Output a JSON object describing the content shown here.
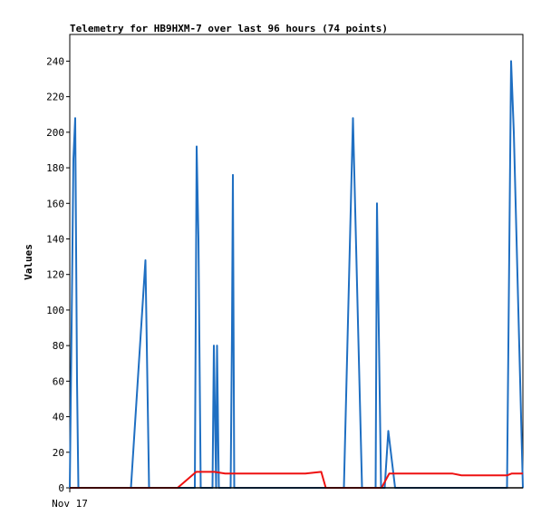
{
  "chart_data": {
    "type": "line",
    "title": "Telemetry for HB9HXM-7 over last 96 hours (74 points)",
    "xlabel": "",
    "ylabel": "Values",
    "x_tick_labels": [
      {
        "label": "Nov 17",
        "at": 0
      }
    ],
    "xlim": [
      0,
      100
    ],
    "ylim": [
      0,
      255
    ],
    "y_ticks": [
      0,
      20,
      40,
      60,
      80,
      100,
      120,
      140,
      160,
      180,
      200,
      220,
      240
    ],
    "grid": false,
    "legend": "none",
    "series": [
      {
        "color": "#1f6fc2",
        "points": [
          [
            0.0,
            0
          ],
          [
            0.4,
            90
          ],
          [
            0.8,
            185
          ],
          [
            1.2,
            208
          ],
          [
            1.6,
            60
          ],
          [
            1.9,
            0
          ],
          [
            13.5,
            0
          ],
          [
            16.7,
            128
          ],
          [
            17.5,
            0
          ],
          [
            27.6,
            0
          ],
          [
            28.0,
            192
          ],
          [
            28.4,
            140
          ],
          [
            28.9,
            0
          ],
          [
            31.5,
            0
          ],
          [
            31.8,
            80
          ],
          [
            32.3,
            0
          ],
          [
            32.5,
            80
          ],
          [
            32.9,
            0
          ],
          [
            35.5,
            0
          ],
          [
            35.8,
            88
          ],
          [
            36.0,
            176
          ],
          [
            36.3,
            0
          ],
          [
            60.5,
            0
          ],
          [
            62.5,
            208
          ],
          [
            64.5,
            0
          ],
          [
            67.5,
            0
          ],
          [
            67.8,
            160
          ],
          [
            68.7,
            0
          ],
          [
            69.5,
            0
          ],
          [
            70.3,
            32
          ],
          [
            71.8,
            0
          ],
          [
            96.5,
            0
          ],
          [
            97.4,
            240
          ],
          [
            98.0,
            200
          ],
          [
            100.0,
            0
          ]
        ]
      },
      {
        "color": "#ee1111",
        "points": [
          [
            0,
            0
          ],
          [
            23.8,
            0
          ],
          [
            27.9,
            9
          ],
          [
            31.9,
            9
          ],
          [
            34.3,
            8
          ],
          [
            52.0,
            8
          ],
          [
            55.5,
            9
          ],
          [
            56.5,
            0
          ],
          [
            68.8,
            0
          ],
          [
            70.5,
            8
          ],
          [
            84.5,
            8
          ],
          [
            86.5,
            7
          ],
          [
            96.5,
            7
          ],
          [
            97.5,
            8
          ],
          [
            100,
            8
          ]
        ]
      },
      {
        "color": "#000000",
        "points": [
          [
            0,
            0
          ],
          [
            100,
            0
          ]
        ]
      }
    ]
  }
}
